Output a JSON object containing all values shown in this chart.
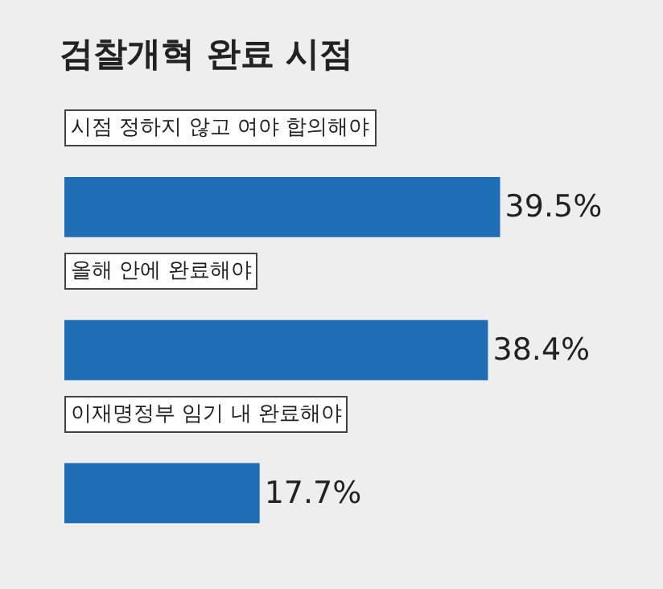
{
  "chart_data": {
    "type": "bar",
    "orientation": "horizontal",
    "title": "검찰개혁 완료 시점",
    "categories": [
      "시점 정하지 않고 여야 합의해야",
      "올해 안에 완료해야",
      "이재명정부 임기 내 완료해야"
    ],
    "values": [
      39.5,
      38.4,
      17.7
    ],
    "value_labels": [
      "39.5%",
      "38.4%",
      "17.7%"
    ],
    "color": "#1f6db5"
  }
}
